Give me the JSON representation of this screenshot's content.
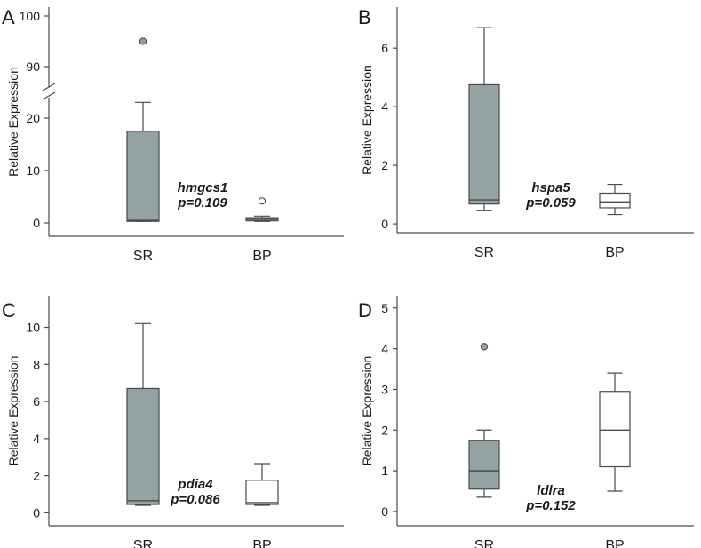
{
  "colors": {
    "filled_box": "#93a3a3",
    "open_box": "#ffffff",
    "stroke": "#4a4a4a",
    "text": "#1a1a1a"
  },
  "chart_data": [
    {
      "panel": "A",
      "type": "box",
      "gene": "hmgcs1",
      "p_value": "p=0.109",
      "ylabel": "Relative Expression",
      "categories": [
        "SR",
        "BP"
      ],
      "axis_break": {
        "lower_max": 25,
        "upper_min": 85,
        "upper_max": 103
      },
      "yticks": [
        0,
        10,
        20,
        90,
        100
      ],
      "series": [
        {
          "name": "SR",
          "filled": true,
          "min": 0.3,
          "q1": 0.3,
          "median": 0.5,
          "q3": 17.5,
          "max": 23,
          "outliers": [
            95
          ],
          "outlier_filled": true
        },
        {
          "name": "BP",
          "filled": true,
          "min": 0.3,
          "q1": 0.4,
          "median": 0.7,
          "q3": 1.0,
          "max": 1.3,
          "outliers": [
            4.2
          ],
          "outlier_filled": false
        }
      ]
    },
    {
      "panel": "B",
      "type": "box",
      "gene": "hspa5",
      "p_value": "p=0.059",
      "ylabel": "Relative Expression",
      "categories": [
        "SR",
        "BP"
      ],
      "ylim": [
        -0.3,
        7.4
      ],
      "yticks": [
        0,
        2,
        4,
        6
      ],
      "series": [
        {
          "name": "SR",
          "filled": true,
          "min": 0.45,
          "q1": 0.68,
          "median": 0.82,
          "q3": 4.75,
          "max": 6.7,
          "outliers": []
        },
        {
          "name": "BP",
          "filled": false,
          "min": 0.32,
          "q1": 0.55,
          "median": 0.75,
          "q3": 1.05,
          "max": 1.35,
          "outliers": []
        }
      ]
    },
    {
      "panel": "C",
      "type": "box",
      "gene": "pdia4",
      "p_value": "p=0.086",
      "ylabel": "Relative Expression",
      "categories": [
        "SR",
        "BP"
      ],
      "ylim": [
        -0.7,
        11.7
      ],
      "yticks": [
        0,
        2,
        4,
        6,
        8,
        10
      ],
      "series": [
        {
          "name": "SR",
          "filled": true,
          "min": 0.4,
          "q1": 0.45,
          "median": 0.65,
          "q3": 6.7,
          "max": 10.2,
          "outliers": []
        },
        {
          "name": "BP",
          "filled": false,
          "min": 0.4,
          "q1": 0.45,
          "median": 0.55,
          "q3": 1.75,
          "max": 2.65,
          "outliers": []
        }
      ]
    },
    {
      "panel": "D",
      "type": "box",
      "gene": "ldlra",
      "p_value": "p=0.152",
      "ylabel": "Relative Expression",
      "categories": [
        "SR",
        "BP"
      ],
      "ylim": [
        -0.35,
        5.3
      ],
      "yticks": [
        0,
        1,
        2,
        3,
        4,
        5
      ],
      "series": [
        {
          "name": "SR",
          "filled": true,
          "min": 0.35,
          "q1": 0.55,
          "median": 1.0,
          "q3": 1.75,
          "max": 2.0,
          "outliers": [
            4.05
          ]
        },
        {
          "name": "BP",
          "filled": false,
          "min": 0.5,
          "q1": 1.1,
          "median": 2.0,
          "q3": 2.95,
          "max": 3.4,
          "outliers": []
        }
      ]
    }
  ]
}
